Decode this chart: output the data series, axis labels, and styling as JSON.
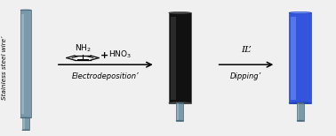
{
  "bg_color": "#f0f0f0",
  "wire_color_light": "#b0c8d0",
  "wire_color_dark": "#4a6a78",
  "wire_color_mid": "#7a9aaa",
  "black_coating_color": "#111111",
  "blue_coating_color": "#3355dd",
  "blue_coating_light": "#7799ff",
  "blue_coating_edge": "#2244bb",
  "label_electrodeposition": "Electrodeposition",
  "label_dipping": "Dipping",
  "label_wire": "Stainless steel wire",
  "label_il": "IL"
}
